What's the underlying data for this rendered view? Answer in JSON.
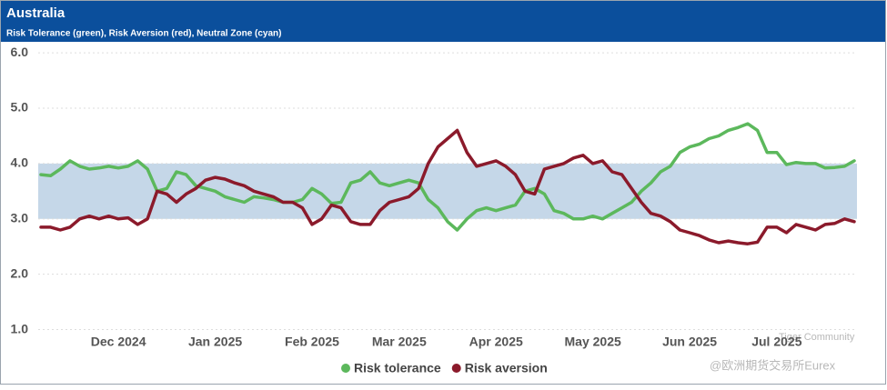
{
  "chart_data": {
    "type": "line",
    "title": "Australia",
    "subtitle": "Risk Tolerance (green), Risk Aversion (red), Neutral Zone (cyan)",
    "categories": [
      null,
      null,
      null,
      null,
      null,
      null,
      null,
      null,
      "Dec 2024",
      null,
      null,
      null,
      null,
      null,
      null,
      null,
      null,
      null,
      "Jan 2025",
      null,
      null,
      null,
      null,
      null,
      null,
      null,
      null,
      null,
      "Feb 2025",
      null,
      null,
      null,
      null,
      null,
      null,
      null,
      null,
      "Mar 2025",
      null,
      null,
      null,
      null,
      null,
      null,
      null,
      null,
      null,
      "Apr 2025",
      null,
      null,
      null,
      null,
      null,
      null,
      null,
      null,
      null,
      "May 2025",
      null,
      null,
      null,
      null,
      null,
      null,
      null,
      null,
      null,
      "Jun 2025",
      null,
      null,
      null,
      null,
      null,
      null,
      null,
      null,
      "Jul 2025",
      null,
      null,
      null,
      null,
      null,
      null,
      null,
      null
    ],
    "series": [
      {
        "name": "Risk tolerance",
        "color": "#5cb85c",
        "values": [
          3.8,
          3.78,
          3.9,
          4.05,
          3.95,
          3.9,
          3.92,
          3.95,
          3.92,
          3.95,
          4.05,
          3.9,
          3.5,
          3.55,
          3.85,
          3.8,
          3.6,
          3.55,
          3.5,
          3.4,
          3.35,
          3.3,
          3.4,
          3.38,
          3.35,
          3.3,
          3.3,
          3.35,
          3.55,
          3.45,
          3.28,
          3.3,
          3.65,
          3.7,
          3.85,
          3.65,
          3.6,
          3.65,
          3.7,
          3.65,
          3.35,
          3.2,
          2.95,
          2.8,
          3.0,
          3.15,
          3.2,
          3.15,
          3.2,
          3.25,
          3.5,
          3.55,
          3.45,
          3.15,
          3.1,
          3.0,
          3.0,
          3.05,
          3.0,
          3.1,
          3.2,
          3.3,
          3.5,
          3.65,
          3.85,
          3.95,
          4.2,
          4.3,
          4.35,
          4.45,
          4.5,
          4.6,
          4.65,
          4.72,
          4.6,
          4.2,
          4.2,
          3.98,
          4.02,
          4.0,
          4.0,
          3.92,
          3.93,
          3.95,
          4.05
        ]
      },
      {
        "name": "Risk aversion",
        "color": "#8b1a2b",
        "values": [
          2.85,
          2.85,
          2.8,
          2.85,
          3.0,
          3.05,
          3.0,
          3.05,
          3.0,
          3.02,
          2.9,
          3.0,
          3.5,
          3.45,
          3.3,
          3.45,
          3.55,
          3.7,
          3.75,
          3.72,
          3.65,
          3.6,
          3.5,
          3.45,
          3.4,
          3.3,
          3.3,
          3.2,
          2.9,
          3.0,
          3.25,
          3.2,
          2.95,
          2.9,
          2.9,
          3.15,
          3.3,
          3.35,
          3.4,
          3.55,
          4.0,
          4.3,
          4.45,
          4.6,
          4.2,
          3.95,
          4.0,
          4.05,
          3.95,
          3.8,
          3.5,
          3.45,
          3.9,
          3.95,
          4.0,
          4.1,
          4.15,
          4.0,
          4.05,
          3.85,
          3.8,
          3.55,
          3.3,
          3.1,
          3.05,
          2.95,
          2.8,
          2.75,
          2.7,
          2.62,
          2.57,
          2.6,
          2.57,
          2.55,
          2.58,
          2.85,
          2.85,
          2.75,
          2.9,
          2.85,
          2.8,
          2.9,
          2.92,
          3.0,
          2.95
        ]
      }
    ],
    "neutral_zone": [
      3,
      4
    ],
    "neutral_zone_color": "#c5d7e8",
    "ylim": [
      0.5,
      6.15
    ],
    "yticks": [
      {
        "value": 1,
        "label": "1.0"
      },
      {
        "value": 2,
        "label": "2.0"
      },
      {
        "value": 3,
        "label": "3.0"
      },
      {
        "value": 4,
        "label": "4.0"
      },
      {
        "value": 5,
        "label": "5.0"
      },
      {
        "value": 6,
        "label": "6.0"
      }
    ],
    "grid": true,
    "legend": "bottom",
    "watermarks": [
      "Tiger Community",
      "@欧洲期货交易所Eurex"
    ]
  }
}
